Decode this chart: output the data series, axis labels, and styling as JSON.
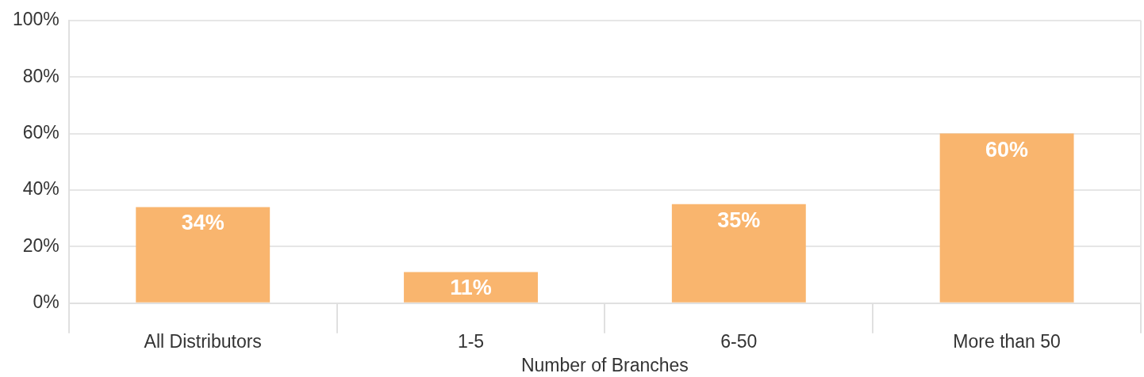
{
  "chart_data": {
    "type": "bar",
    "xlabel": "Number of Branches",
    "categories": [
      "All Distributors",
      "1-5",
      "6-50",
      "More than 50"
    ],
    "values": [
      34,
      11,
      35,
      60
    ],
    "color": "#f9b56e",
    "value_labels": [
      "34%",
      "11%",
      "35%",
      "60%"
    ],
    "ylim": [
      0,
      100
    ],
    "yticks": [
      {
        "value": 0,
        "label": "0%"
      },
      {
        "value": 20,
        "label": "20%"
      },
      {
        "value": 40,
        "label": "40%"
      },
      {
        "value": 60,
        "label": "60%"
      },
      {
        "value": 80,
        "label": "80%"
      },
      {
        "value": 100,
        "label": "100%"
      }
    ],
    "grid": "y"
  }
}
